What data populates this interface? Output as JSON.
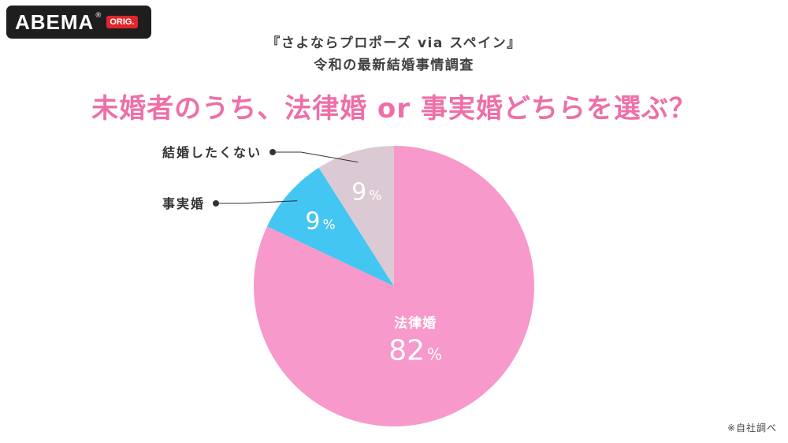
{
  "brand": {
    "name": "ABEMA",
    "reg": "®",
    "badge": "ORIG."
  },
  "header": {
    "subtitle_line1": "『さよならプロポーズ via スペイン』",
    "subtitle_line2": "令和の最新結婚事情調査",
    "title": "未婚者のうち、法律婚 or 事実婚どちらを選ぶ？"
  },
  "footnote": "※自社調べ",
  "chart_data": {
    "type": "pie",
    "title": "未婚者のうち、法律婚 or 事実婚どちらを選ぶ？",
    "slices": [
      {
        "label": "法律婚",
        "value": 82,
        "value_label": "82",
        "unit": "%",
        "color": "#f799ca",
        "label_position": "inside"
      },
      {
        "label": "事実婚",
        "value": 9,
        "value_label": "9",
        "unit": "%",
        "color": "#44c6f2",
        "label_position": "outside-left"
      },
      {
        "label": "結婚したくない",
        "value": 9,
        "value_label": "9",
        "unit": "%",
        "color": "#dbcad3",
        "label_position": "outside-left"
      }
    ],
    "start": "12 o'clock",
    "direction": "clockwise",
    "leader_color": "#333333",
    "inside_text_color": "#ffffff"
  }
}
